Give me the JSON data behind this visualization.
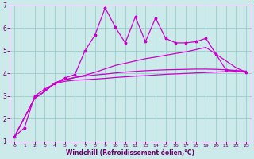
{
  "bg_color": "#cceaea",
  "line_color": "#cc00cc",
  "grid_color": "#99cccc",
  "xlabel": "Windchill (Refroidissement éolien,°C)",
  "xlabel_color": "#660066",
  "tick_color": "#660066",
  "xlim": [
    -0.5,
    23.5
  ],
  "ylim": [
    1,
    7
  ],
  "yticks": [
    1,
    2,
    3,
    4,
    5,
    6,
    7
  ],
  "xticks": [
    0,
    1,
    2,
    3,
    4,
    5,
    6,
    7,
    8,
    9,
    10,
    11,
    12,
    13,
    14,
    15,
    16,
    17,
    18,
    19,
    20,
    21,
    22,
    23
  ],
  "series1_x": [
    0,
    1,
    2,
    3,
    4,
    5,
    6,
    7,
    8,
    9,
    10,
    11,
    12,
    13,
    14,
    15,
    16,
    17,
    18,
    19,
    20,
    21,
    22,
    23
  ],
  "series1_y": [
    1.2,
    1.6,
    3.0,
    3.3,
    3.55,
    3.8,
    3.95,
    5.0,
    5.7,
    6.9,
    6.05,
    5.35,
    6.5,
    5.4,
    6.45,
    5.55,
    5.35,
    5.35,
    5.4,
    5.55,
    4.85,
    4.15,
    4.1,
    4.05
  ],
  "series2_x": [
    0,
    2,
    3,
    4,
    5,
    6,
    7,
    8,
    9,
    10,
    11,
    12,
    13,
    14,
    15,
    16,
    17,
    18,
    19,
    20,
    21,
    22,
    23
  ],
  "series2_y": [
    1.2,
    2.9,
    3.2,
    3.55,
    3.65,
    3.7,
    3.72,
    3.75,
    3.78,
    3.82,
    3.85,
    3.88,
    3.9,
    3.93,
    3.96,
    3.98,
    4.0,
    4.02,
    4.04,
    4.06,
    4.08,
    4.09,
    4.1
  ],
  "series3_x": [
    0,
    2,
    3,
    4,
    5,
    6,
    7,
    8,
    9,
    10,
    11,
    12,
    13,
    14,
    15,
    16,
    17,
    18,
    19,
    20,
    21,
    22,
    23
  ],
  "series3_y": [
    1.2,
    2.9,
    3.2,
    3.58,
    3.72,
    3.82,
    3.92,
    4.05,
    4.2,
    4.35,
    4.45,
    4.55,
    4.65,
    4.72,
    4.8,
    4.88,
    4.95,
    5.05,
    5.15,
    4.85,
    4.55,
    4.25,
    4.05
  ],
  "series4_x": [
    0,
    2,
    3,
    4,
    5,
    6,
    7,
    8,
    9,
    10,
    11,
    12,
    13,
    14,
    15,
    16,
    17,
    18,
    19,
    20,
    21,
    22,
    23
  ],
  "series4_y": [
    1.2,
    2.9,
    3.2,
    3.58,
    3.72,
    3.82,
    3.88,
    3.93,
    3.97,
    4.02,
    4.06,
    4.09,
    4.12,
    4.14,
    4.16,
    4.17,
    4.18,
    4.19,
    4.19,
    4.18,
    4.16,
    4.13,
    4.1
  ]
}
